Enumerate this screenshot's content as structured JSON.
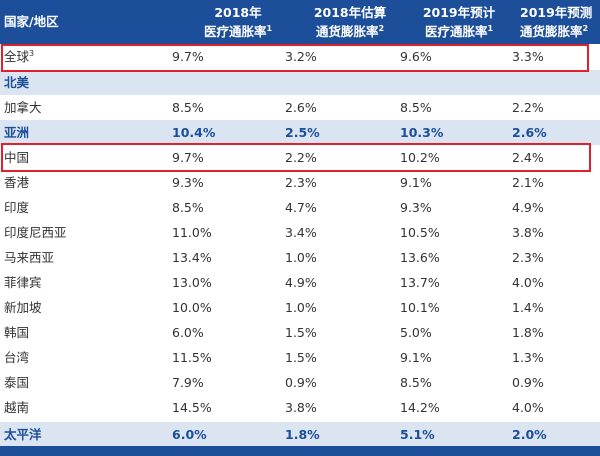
{
  "header": {
    "country": "国家/地区",
    "col1": {
      "l1": "2018年",
      "l2": "医疗通胀率",
      "sup": "1"
    },
    "col2": {
      "l1": "2018年估算",
      "l2": "通货膨胀率",
      "sup": "2"
    },
    "col3": {
      "l1": "2019年预计",
      "l2": "医疗通胀率",
      "sup": "1"
    },
    "col4": {
      "l1": "2019年预测",
      "l2": "通货膨胀率",
      "sup": "2"
    }
  },
  "rows": [
    {
      "name": "全球",
      "sup": "3",
      "v": [
        "9.7%",
        "3.2%",
        "9.6%",
        "3.3%"
      ]
    },
    {
      "name": "北美"
    },
    {
      "name": "加拿大",
      "v": [
        "8.5%",
        "2.6%",
        "8.5%",
        "2.2%"
      ]
    },
    {
      "name": "亚洲",
      "v": [
        "10.4%",
        "2.5%",
        "10.3%",
        "2.6%"
      ]
    },
    {
      "name": "中国",
      "v": [
        "9.7%",
        "2.2%",
        "10.2%",
        "2.4%"
      ]
    },
    {
      "name": "香港",
      "v": [
        "9.3%",
        "2.3%",
        "9.1%",
        "2.1%"
      ]
    },
    {
      "name": "印度",
      "v": [
        "8.5%",
        "4.7%",
        "9.3%",
        "4.9%"
      ]
    },
    {
      "name": "印度尼西亚",
      "v": [
        "11.0%",
        "3.4%",
        "10.5%",
        "3.8%"
      ]
    },
    {
      "name": "马来西亚",
      "v": [
        "13.4%",
        "1.0%",
        "13.6%",
        "2.3%"
      ]
    },
    {
      "name": "菲律宾",
      "v": [
        "13.0%",
        "4.9%",
        "13.7%",
        "4.0%"
      ]
    },
    {
      "name": "新加坡",
      "v": [
        "10.0%",
        "1.0%",
        "10.1%",
        "1.4%"
      ]
    },
    {
      "name": "韩国",
      "v": [
        "6.0%",
        "1.5%",
        "5.0%",
        "1.8%"
      ]
    },
    {
      "name": "台湾",
      "v": [
        "11.5%",
        "1.5%",
        "9.1%",
        "1.3%"
      ]
    },
    {
      "name": "泰国",
      "v": [
        "7.9%",
        "0.9%",
        "8.5%",
        "0.9%"
      ]
    },
    {
      "name": "越南",
      "v": [
        "14.5%",
        "3.8%",
        "14.2%",
        "4.0%"
      ]
    },
    {
      "name": "太平洋",
      "v": [
        "6.0%",
        "1.8%",
        "5.1%",
        "2.0%"
      ]
    }
  ],
  "colors": {
    "header_bg": "#1c4e99",
    "group_bg": "#dbe5f2",
    "highlight": "#e0202b"
  }
}
